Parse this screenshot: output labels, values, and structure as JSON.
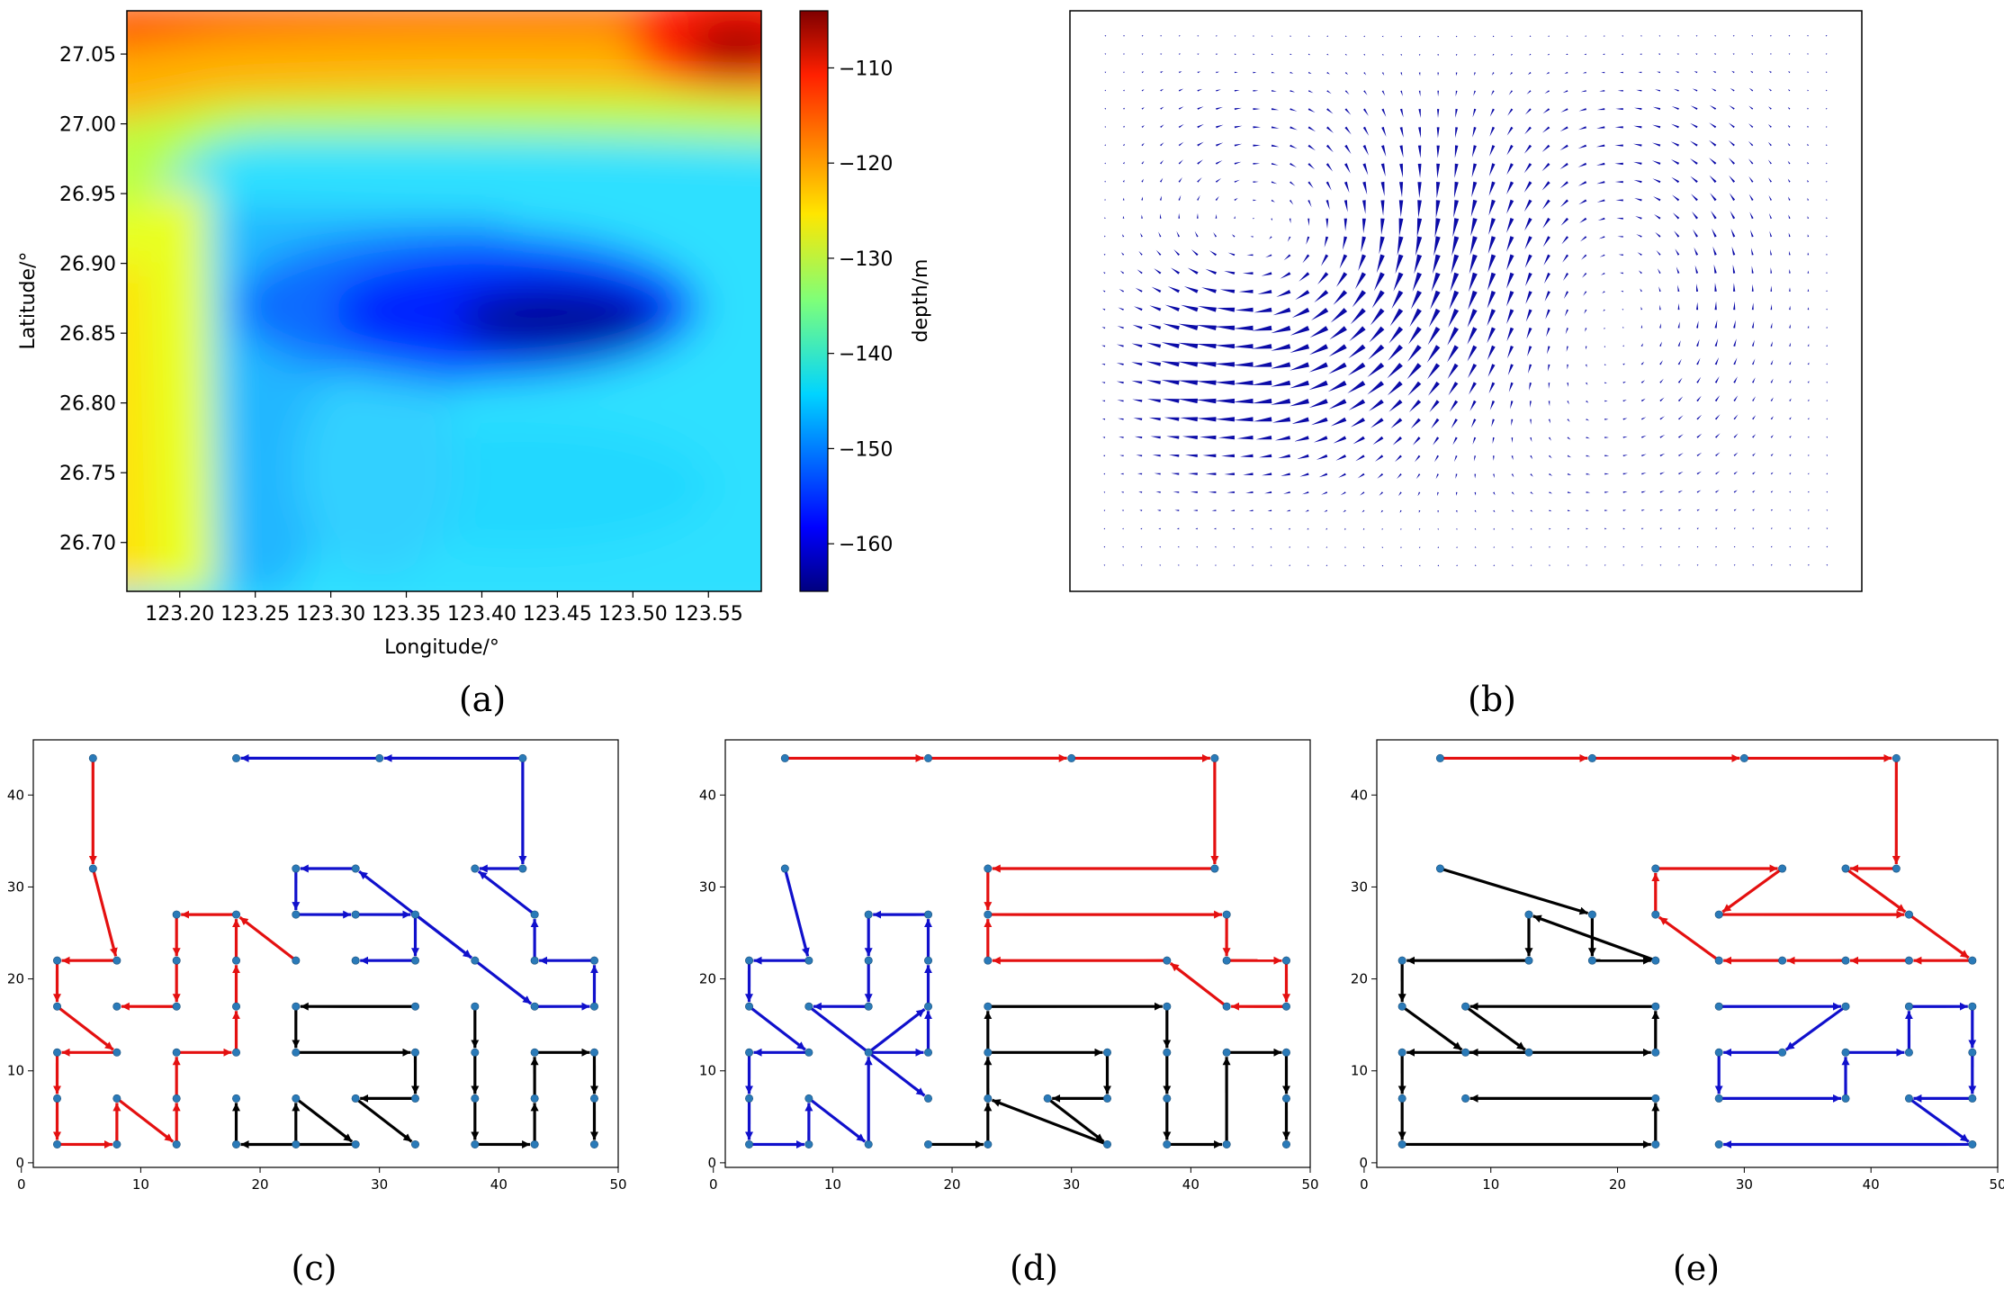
{
  "colors": {
    "red": "#e41010",
    "blue": "#1010cc",
    "black": "#000000",
    "node": "#2a7ab8",
    "quiver": "#0b0ba8"
  },
  "chart_data": [
    {
      "id": "a",
      "type": "heatmap",
      "caption": "(a)",
      "xlabel": "Longitude/°",
      "ylabel": "Latitude/°",
      "xlim": [
        123.165,
        123.585
      ],
      "ylim": [
        26.665,
        27.081
      ],
      "xticks": [
        "123.20",
        "123.25",
        "123.30",
        "123.35",
        "123.40",
        "123.45",
        "123.50",
        "123.55"
      ],
      "xtick_values": [
        123.2,
        123.25,
        123.3,
        123.35,
        123.4,
        123.45,
        123.5,
        123.55
      ],
      "yticks": [
        "26.70",
        "26.75",
        "26.80",
        "26.85",
        "26.90",
        "26.95",
        "27.00",
        "27.05"
      ],
      "ytick_values": [
        26.7,
        26.75,
        26.8,
        26.85,
        26.9,
        26.95,
        27.0,
        27.05
      ],
      "colorbar_label": "depth/m",
      "clim": [
        -165,
        -104
      ],
      "colorbar_ticks": [
        "−110",
        "−120",
        "−130",
        "−140",
        "−150",
        "−160"
      ],
      "colorbar_tick_values": [
        -110,
        -120,
        -130,
        -140,
        -150,
        -160
      ],
      "colormap": "jet"
    },
    {
      "id": "b",
      "type": "quiver",
      "caption": "(b)",
      "description_free": true,
      "grid": [
        40,
        30
      ]
    },
    {
      "id": "c",
      "type": "line",
      "caption": "(c)",
      "xlim": [
        1,
        50
      ],
      "ylim": [
        -0.5,
        46
      ],
      "xticks": [
        "0",
        "10",
        "20",
        "30",
        "40",
        "50"
      ],
      "xtick_values": [
        0,
        10,
        20,
        30,
        40,
        50
      ],
      "yticks": [
        "0",
        "10",
        "20",
        "30",
        "40"
      ],
      "ytick_values": [
        0,
        10,
        20,
        30,
        40
      ],
      "series": [
        {
          "name": "red",
          "color": "red",
          "paths": [
            [
              [
                6,
                44
              ],
              [
                6,
                32
              ],
              [
                8,
                22
              ],
              [
                3,
                22
              ],
              [
                3,
                17
              ],
              [
                8,
                12
              ],
              [
                3,
                12
              ],
              [
                3,
                7
              ],
              [
                3,
                2
              ],
              [
                8,
                2
              ],
              [
                8,
                7
              ],
              [
                13,
                2
              ],
              [
                13,
                7
              ],
              [
                13,
                12
              ],
              [
                18,
                12
              ],
              [
                18,
                17
              ],
              [
                18,
                22
              ],
              [
                18,
                27
              ],
              [
                13,
                27
              ],
              [
                13,
                22
              ],
              [
                13,
                17
              ],
              [
                8,
                17
              ]
            ],
            [
              [
                23,
                22
              ],
              [
                18,
                27
              ]
            ]
          ]
        },
        {
          "name": "blue",
          "color": "blue",
          "paths": [
            [
              [
                42,
                44
              ],
              [
                42,
                32
              ],
              [
                38,
                32
              ]
            ],
            [
              [
                42,
                44
              ],
              [
                30,
                44
              ],
              [
                18,
                44
              ]
            ],
            [
              [
                33,
                27
              ],
              [
                33,
                22
              ],
              [
                28,
                22
              ]
            ],
            [
              [
                33,
                27
              ],
              [
                28,
                32
              ],
              [
                23,
                32
              ],
              [
                23,
                27
              ],
              [
                28,
                27
              ],
              [
                33,
                27
              ],
              [
                38,
                22
              ],
              [
                43,
                17
              ],
              [
                48,
                17
              ],
              [
                48,
                22
              ],
              [
                43,
                22
              ],
              [
                43,
                27
              ],
              [
                38,
                32
              ]
            ],
            [
              [
                33,
                27
              ],
              [
                38,
                22
              ]
            ]
          ]
        },
        {
          "name": "black",
          "color": "black",
          "paths": [
            [
              [
                33,
                17
              ],
              [
                23,
                17
              ],
              [
                23,
                12
              ],
              [
                33,
                12
              ],
              [
                33,
                7
              ],
              [
                28,
                7
              ],
              [
                33,
                2
              ]
            ],
            [
              [
                38,
                17
              ],
              [
                38,
                12
              ],
              [
                38,
                7
              ],
              [
                38,
                2
              ],
              [
                43,
                2
              ],
              [
                43,
                7
              ],
              [
                43,
                12
              ],
              [
                48,
                12
              ],
              [
                48,
                7
              ],
              [
                48,
                2
              ]
            ],
            [
              [
                23,
                7
              ],
              [
                28,
                2
              ],
              [
                18,
                2
              ],
              [
                18,
                7
              ]
            ],
            [
              [
                23,
                2
              ],
              [
                23,
                7
              ]
            ]
          ]
        }
      ]
    },
    {
      "id": "d",
      "type": "line",
      "caption": "(d)",
      "xlim": [
        1,
        50
      ],
      "ylim": [
        -0.5,
        46
      ],
      "xticks": [
        "0",
        "10",
        "20",
        "30",
        "40",
        "50"
      ],
      "xtick_values": [
        0,
        10,
        20,
        30,
        40,
        50
      ],
      "yticks": [
        "0",
        "10",
        "20",
        "30",
        "40"
      ],
      "ytick_values": [
        0,
        10,
        20,
        30,
        40
      ],
      "series": [
        {
          "name": "red",
          "color": "red",
          "paths": [
            [
              [
                6,
                44
              ],
              [
                18,
                44
              ],
              [
                30,
                44
              ],
              [
                42,
                44
              ],
              [
                42,
                32
              ],
              [
                23,
                32
              ],
              [
                23,
                27
              ],
              [
                43,
                27
              ],
              [
                43,
                22
              ],
              [
                48,
                22
              ],
              [
                48,
                17
              ],
              [
                43,
                17
              ],
              [
                38,
                22
              ],
              [
                23,
                22
              ],
              [
                23,
                27
              ]
            ]
          ]
        },
        {
          "name": "blue",
          "color": "blue",
          "paths": [
            [
              [
                6,
                32
              ],
              [
                8,
                22
              ],
              [
                3,
                22
              ],
              [
                3,
                17
              ],
              [
                8,
                12
              ],
              [
                3,
                12
              ],
              [
                3,
                7
              ],
              [
                3,
                2
              ],
              [
                8,
                2
              ],
              [
                8,
                7
              ],
              [
                13,
                2
              ],
              [
                13,
                12
              ],
              [
                18,
                12
              ],
              [
                18,
                17
              ],
              [
                18,
                22
              ],
              [
                18,
                27
              ],
              [
                13,
                27
              ],
              [
                13,
                22
              ],
              [
                13,
                17
              ],
              [
                8,
                17
              ]
            ],
            [
              [
                8,
                17
              ],
              [
                18,
                7
              ]
            ],
            [
              [
                13,
                12
              ],
              [
                18,
                17
              ]
            ]
          ]
        },
        {
          "name": "black",
          "color": "black",
          "paths": [
            [
              [
                18,
                2
              ],
              [
                23,
                2
              ],
              [
                23,
                7
              ],
              [
                23,
                12
              ],
              [
                33,
                12
              ],
              [
                33,
                7
              ],
              [
                28,
                7
              ],
              [
                33,
                2
              ],
              [
                23,
                7
              ]
            ],
            [
              [
                23,
                12
              ],
              [
                23,
                17
              ],
              [
                38,
                17
              ],
              [
                38,
                12
              ],
              [
                38,
                7
              ],
              [
                38,
                2
              ],
              [
                43,
                2
              ],
              [
                43,
                12
              ],
              [
                48,
                12
              ],
              [
                48,
                7
              ],
              [
                48,
                2
              ]
            ]
          ]
        }
      ]
    },
    {
      "id": "e",
      "type": "line",
      "caption": "(e)",
      "xlim": [
        1,
        50
      ],
      "ylim": [
        -0.5,
        46
      ],
      "xticks": [
        "0",
        "10",
        "20",
        "30",
        "40",
        "50"
      ],
      "xtick_values": [
        0,
        10,
        20,
        30,
        40,
        50
      ],
      "yticks": [
        "0",
        "10",
        "20",
        "30",
        "40"
      ],
      "ytick_values": [
        0,
        10,
        20,
        30,
        40
      ],
      "series": [
        {
          "name": "red",
          "color": "red",
          "paths": [
            [
              [
                6,
                44
              ],
              [
                18,
                44
              ],
              [
                30,
                44
              ],
              [
                42,
                44
              ],
              [
                42,
                32
              ],
              [
                38,
                32
              ],
              [
                43,
                27
              ],
              [
                48,
                22
              ],
              [
                43,
                22
              ],
              [
                38,
                22
              ],
              [
                33,
                22
              ],
              [
                28,
                22
              ],
              [
                23,
                27
              ],
              [
                23,
                32
              ],
              [
                33,
                32
              ],
              [
                28,
                27
              ],
              [
                43,
                27
              ]
            ]
          ]
        },
        {
          "name": "blue",
          "color": "blue",
          "paths": [
            [
              [
                28,
                17
              ],
              [
                38,
                17
              ],
              [
                33,
                12
              ],
              [
                28,
                12
              ],
              [
                28,
                7
              ],
              [
                38,
                7
              ],
              [
                38,
                12
              ],
              [
                43,
                12
              ],
              [
                43,
                17
              ],
              [
                48,
                17
              ],
              [
                48,
                12
              ],
              [
                48,
                7
              ],
              [
                43,
                7
              ],
              [
                48,
                2
              ],
              [
                28,
                2
              ]
            ]
          ]
        },
        {
          "name": "black",
          "color": "black",
          "paths": [
            [
              [
                6,
                32
              ],
              [
                18,
                27
              ],
              [
                18,
                22
              ],
              [
                23,
                22
              ],
              [
                13,
                27
              ],
              [
                13,
                22
              ],
              [
                3,
                22
              ],
              [
                3,
                17
              ],
              [
                8,
                12
              ],
              [
                3,
                12
              ],
              [
                3,
                7
              ],
              [
                3,
                2
              ],
              [
                23,
                2
              ],
              [
                23,
                7
              ],
              [
                8,
                7
              ]
            ],
            [
              [
                23,
                12
              ],
              [
                23,
                17
              ],
              [
                8,
                17
              ],
              [
                13,
                12
              ],
              [
                8,
                12
              ],
              [
                23,
                12
              ]
            ]
          ]
        }
      ]
    }
  ]
}
